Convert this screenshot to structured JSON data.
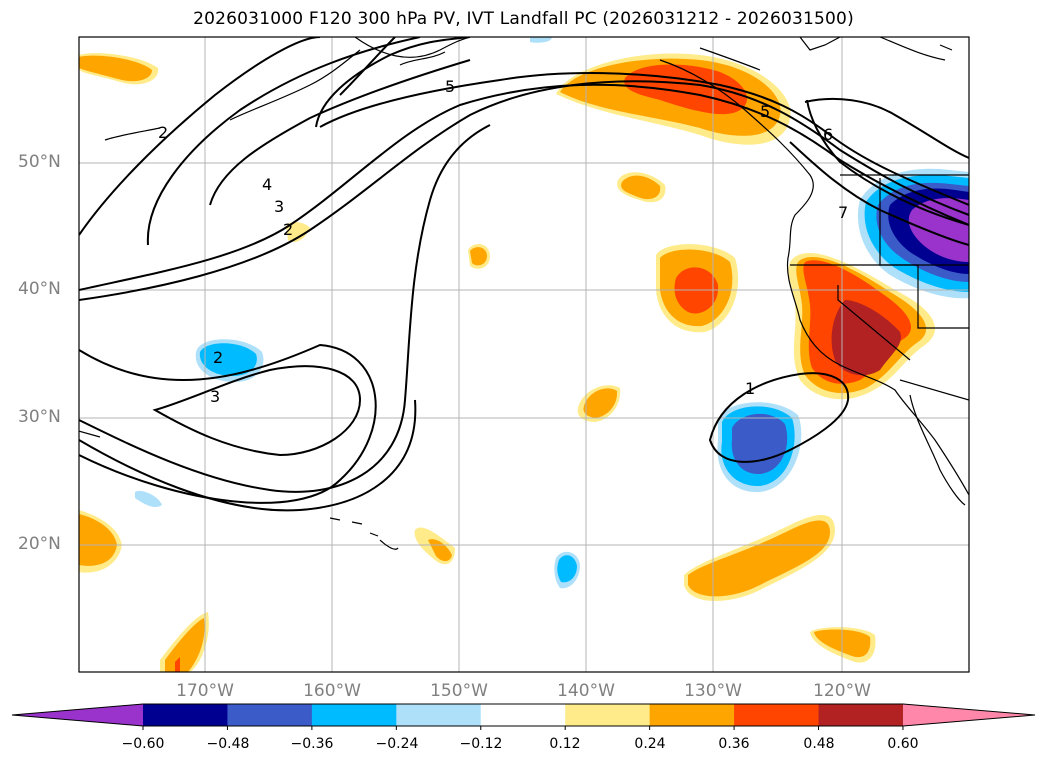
{
  "title": "2026031000 F120 300 hPa PV, IVT Landfall PC (2026031212 - 2026031500)",
  "lat_labels": [
    "50°N",
    "40°N",
    "30°N",
    "20°N"
  ],
  "lon_labels": [
    "170°W",
    "160°W",
    "150°W",
    "140°W",
    "130°W",
    "120°W"
  ],
  "colorbar": {
    "ticks": [
      "−0.60",
      "−0.48",
      "−0.36",
      "−0.24",
      "−0.12",
      "0.12",
      "0.24",
      "0.36",
      "0.48",
      "0.60"
    ],
    "colors": [
      "#9933cc",
      "#000090",
      "#3a5bc8",
      "#00bbff",
      "#aee0fa",
      "#ffffff",
      "#ffeb8a",
      "#ffa500",
      "#ff4500",
      "#b22222",
      "#ff88aa"
    ]
  },
  "pv_contour_labels": [
    "2",
    "2",
    "3",
    "4",
    "5",
    "5",
    "6",
    "7",
    "2",
    "3",
    "1"
  ],
  "colors": {
    "axis_label": "#808080",
    "grid": "#b4b4b4",
    "coast": "#000000"
  }
}
